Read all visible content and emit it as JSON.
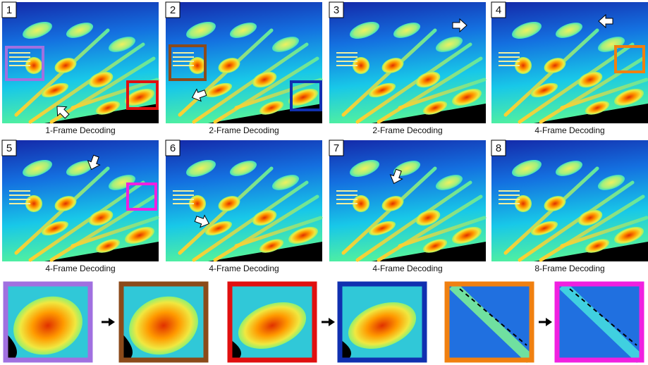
{
  "panels": [
    {
      "number": "1",
      "caption": "1-Frame Decoding"
    },
    {
      "number": "2",
      "caption": "2-Frame Decoding"
    },
    {
      "number": "3",
      "caption": "2-Frame Decoding"
    },
    {
      "number": "4",
      "caption": "4-Frame Decoding"
    },
    {
      "number": "5",
      "caption": "4-Frame Decoding"
    },
    {
      "number": "6",
      "caption": "4-Frame Decoding"
    },
    {
      "number": "7",
      "caption": "4-Frame Decoding"
    },
    {
      "number": "8",
      "caption": "8-Frame Decoding"
    }
  ]
}
